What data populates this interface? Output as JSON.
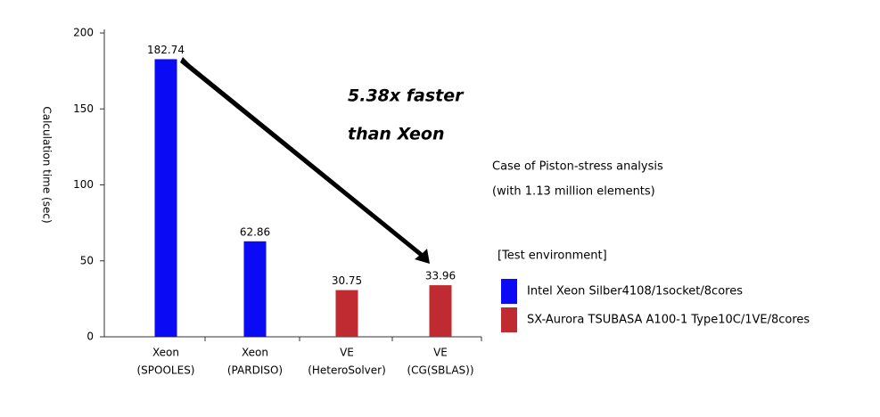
{
  "chart_data": {
    "type": "bar",
    "y_label": "Calculation time (sec)",
    "categories": [
      [
        "Xeon",
        "(SPOOLES)"
      ],
      [
        "Xeon",
        "(PARDISO)"
      ],
      [
        "VE",
        "(HeteroSolver)"
      ],
      [
        "VE",
        "(CG(SBLAS))"
      ]
    ],
    "series": [
      {
        "name": "Intel Xeon Silber4108/1socket/8cores",
        "color": "#0a0af5",
        "values": [
          182.74,
          62.86,
          null,
          null
        ]
      },
      {
        "name": "SX-Aurora TSUBASA A100-1 Type10C/1VE/8cores",
        "color": "#bf2b30",
        "values": [
          null,
          null,
          30.75,
          33.96
        ]
      }
    ],
    "ylim": [
      0,
      200
    ],
    "yticks": [
      0,
      50,
      100,
      150,
      200
    ],
    "annotations": [
      "5.38x faster",
      "than Xeon"
    ],
    "notes": [
      "Case of Piston-stress analysis",
      "(with 1.13 million elements)"
    ],
    "legend_title": "[Test environment]"
  }
}
